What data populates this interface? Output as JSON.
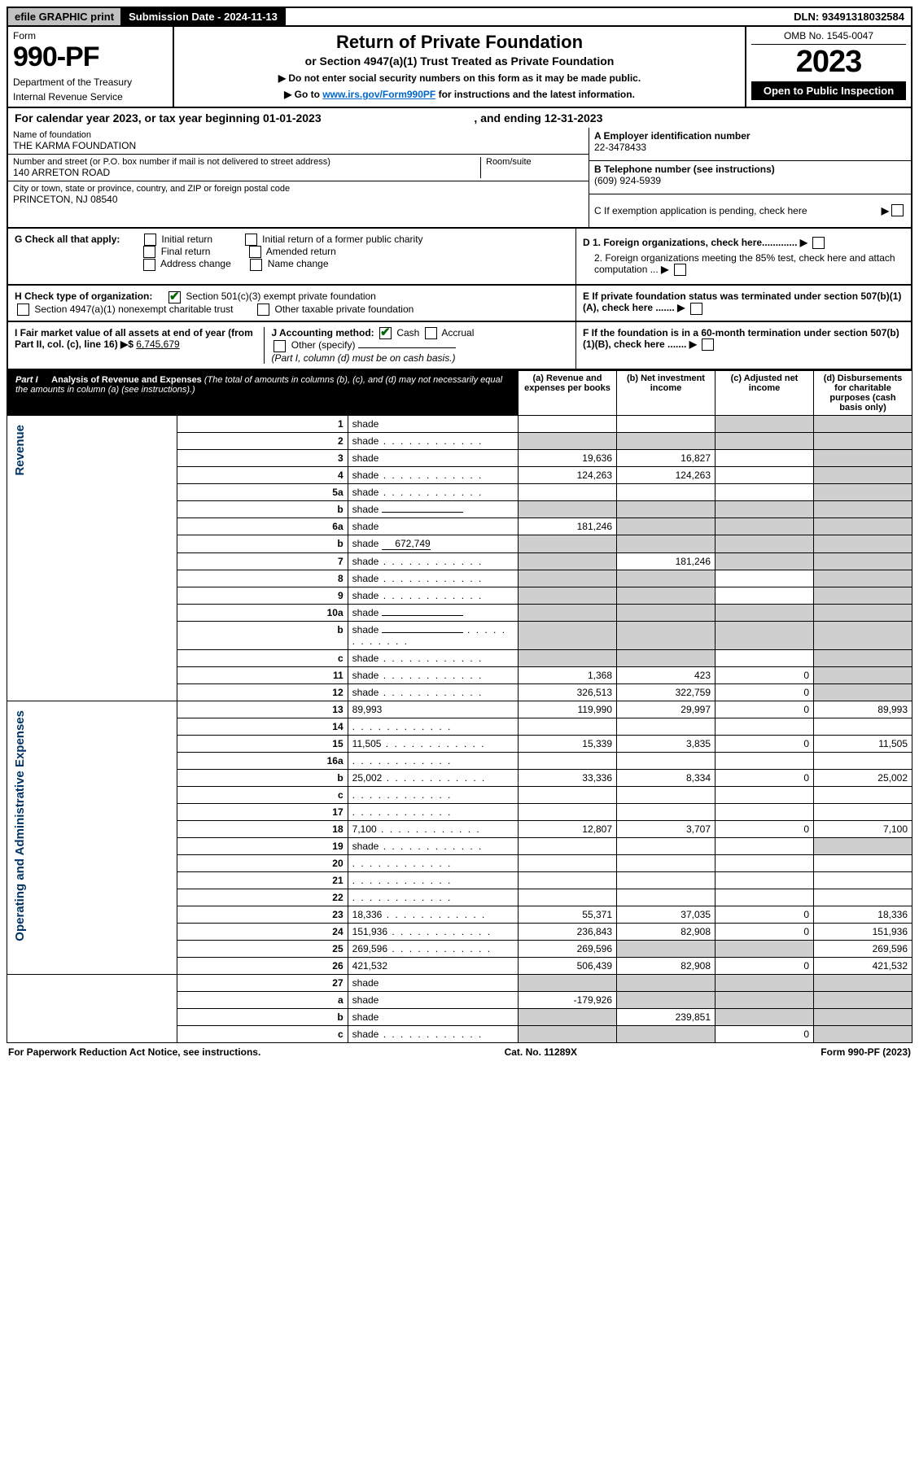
{
  "topbar": {
    "efile": "efile GRAPHIC print",
    "submission": "Submission Date - 2024-11-13",
    "dln": "DLN: 93491318032584"
  },
  "header": {
    "form_label": "Form",
    "form_number": "990-PF",
    "dept1": "Department of the Treasury",
    "dept2": "Internal Revenue Service",
    "title": "Return of Private Foundation",
    "subtitle": "or Section 4947(a)(1) Trust Treated as Private Foundation",
    "instr1": "▶ Do not enter social security numbers on this form as it may be made public.",
    "instr2_pre": "▶ Go to ",
    "instr2_link": "www.irs.gov/Form990PF",
    "instr2_post": " for instructions and the latest information.",
    "omb": "OMB No. 1545-0047",
    "year": "2023",
    "open": "Open to Public Inspection"
  },
  "calyear": {
    "text_pre": "For calendar year 2023, or tax year beginning ",
    "begin": "01-01-2023",
    "text_mid": " , and ending ",
    "end": "12-31-2023"
  },
  "ident": {
    "name_label": "Name of foundation",
    "name": "THE KARMA FOUNDATION",
    "addr_label": "Number and street (or P.O. box number if mail is not delivered to street address)",
    "addr": "140 ARRETON ROAD",
    "room_label": "Room/suite",
    "city_label": "City or town, state or province, country, and ZIP or foreign postal code",
    "city": "PRINCETON, NJ  08540",
    "a_label": "A Employer identification number",
    "a_val": "22-3478433",
    "b_label": "B Telephone number (see instructions)",
    "b_val": "(609) 924-5939",
    "c_label": "C If exemption application is pending, check here"
  },
  "checks": {
    "g": "G Check all that apply:",
    "g_opts": [
      "Initial return",
      "Final return",
      "Address change",
      "Initial return of a former public charity",
      "Amended return",
      "Name change"
    ],
    "h": "H Check type of organization:",
    "h1": "Section 501(c)(3) exempt private foundation",
    "h2": "Section 4947(a)(1) nonexempt charitable trust",
    "h3": "Other taxable private foundation",
    "i_pre": "I Fair market value of all assets at end of year (from Part II, col. (c), line 16) ▶$ ",
    "i_val": "6,745,679",
    "j": "J Accounting method:",
    "j_cash": "Cash",
    "j_accrual": "Accrual",
    "j_other": "Other (specify)",
    "j_note": "(Part I, column (d) must be on cash basis.)",
    "d1": "D 1. Foreign organizations, check here.............",
    "d2": "2. Foreign organizations meeting the 85% test, check here and attach computation ...",
    "e": "E  If private foundation status was terminated under section 507(b)(1)(A), check here .......",
    "f": "F  If the foundation is in a 60-month termination under section 507(b)(1)(B), check here .......",
    "arrow": "▶"
  },
  "part1": {
    "label": "Part I",
    "title": "Analysis of Revenue and Expenses",
    "sub": "(The total of amounts in columns (b), (c), and (d) may not necessarily equal the amounts in column (a) (see instructions).)",
    "col_a": "(a)  Revenue and expenses per books",
    "col_b": "(b)  Net investment income",
    "col_c": "(c)  Adjusted net income",
    "col_d": "(d)  Disbursements for charitable purposes (cash basis only)"
  },
  "side": {
    "revenue": "Revenue",
    "expenses": "Operating and Administrative Expenses"
  },
  "rows": [
    {
      "n": "1",
      "d": "shade",
      "a": "",
      "b": "",
      "c": "shade"
    },
    {
      "n": "2",
      "d": "shade",
      "a": "shade",
      "b": "shade",
      "c": "shade",
      "dots": true
    },
    {
      "n": "3",
      "d": "shade",
      "a": "19,636",
      "b": "16,827",
      "c": ""
    },
    {
      "n": "4",
      "d": "shade",
      "a": "124,263",
      "b": "124,263",
      "c": "",
      "dots": true
    },
    {
      "n": "5a",
      "d": "shade",
      "a": "",
      "b": "",
      "c": "",
      "dots": true
    },
    {
      "n": "b",
      "d": "shade",
      "a": "shade",
      "b": "shade",
      "c": "shade",
      "inline": true
    },
    {
      "n": "6a",
      "d": "shade",
      "a": "181,246",
      "b": "shade",
      "c": "shade"
    },
    {
      "n": "b",
      "d": "shade",
      "a": "shade",
      "b": "shade",
      "c": "shade",
      "inline_val": "672,749"
    },
    {
      "n": "7",
      "d": "shade",
      "a": "shade",
      "b": "181,246",
      "c": "shade",
      "dots": true
    },
    {
      "n": "8",
      "d": "shade",
      "a": "shade",
      "b": "shade",
      "c": "",
      "dots": true
    },
    {
      "n": "9",
      "d": "shade",
      "a": "shade",
      "b": "shade",
      "c": "",
      "dots": true
    },
    {
      "n": "10a",
      "d": "shade",
      "a": "shade",
      "b": "shade",
      "c": "shade",
      "inline": true
    },
    {
      "n": "b",
      "d": "shade",
      "a": "shade",
      "b": "shade",
      "c": "shade",
      "inline": true,
      "dots": true
    },
    {
      "n": "c",
      "d": "shade",
      "a": "shade",
      "b": "shade",
      "c": "",
      "dots": true
    },
    {
      "n": "11",
      "d": "shade",
      "a": "1,368",
      "b": "423",
      "c": "0",
      "dots": true
    },
    {
      "n": "12",
      "d": "shade",
      "a": "326,513",
      "b": "322,759",
      "c": "0",
      "dots": true
    }
  ],
  "exp_rows": [
    {
      "n": "13",
      "d": "89,993",
      "a": "119,990",
      "b": "29,997",
      "c": "0"
    },
    {
      "n": "14",
      "d": "",
      "a": "",
      "b": "",
      "c": "",
      "dots": true
    },
    {
      "n": "15",
      "d": "11,505",
      "a": "15,339",
      "b": "3,835",
      "c": "0",
      "dots": true
    },
    {
      "n": "16a",
      "d": "",
      "a": "",
      "b": "",
      "c": "",
      "dots": true
    },
    {
      "n": "b",
      "d": "25,002",
      "a": "33,336",
      "b": "8,334",
      "c": "0",
      "dots": true
    },
    {
      "n": "c",
      "d": "",
      "a": "",
      "b": "",
      "c": "",
      "dots": true
    },
    {
      "n": "17",
      "d": "",
      "a": "",
      "b": "",
      "c": "",
      "dots": true
    },
    {
      "n": "18",
      "d": "7,100",
      "a": "12,807",
      "b": "3,707",
      "c": "0",
      "dots": true
    },
    {
      "n": "19",
      "d": "shade",
      "a": "",
      "b": "",
      "c": "",
      "dots": true
    },
    {
      "n": "20",
      "d": "",
      "a": "",
      "b": "",
      "c": "",
      "dots": true
    },
    {
      "n": "21",
      "d": "",
      "a": "",
      "b": "",
      "c": "",
      "dots": true
    },
    {
      "n": "22",
      "d": "",
      "a": "",
      "b": "",
      "c": "",
      "dots": true
    },
    {
      "n": "23",
      "d": "18,336",
      "a": "55,371",
      "b": "37,035",
      "c": "0",
      "dots": true
    },
    {
      "n": "24",
      "d": "151,936",
      "a": "236,843",
      "b": "82,908",
      "c": "0",
      "dots": true
    },
    {
      "n": "25",
      "d": "269,596",
      "a": "269,596",
      "b": "shade",
      "c": "shade",
      "dots": true
    },
    {
      "n": "26",
      "d": "421,532",
      "a": "506,439",
      "b": "82,908",
      "c": "0"
    }
  ],
  "bottom_rows": [
    {
      "n": "27",
      "d": "shade",
      "a": "shade",
      "b": "shade",
      "c": "shade"
    },
    {
      "n": "a",
      "d": "shade",
      "a": "-179,926",
      "b": "shade",
      "c": "shade"
    },
    {
      "n": "b",
      "d": "shade",
      "a": "shade",
      "b": "239,851",
      "c": "shade"
    },
    {
      "n": "c",
      "d": "shade",
      "a": "shade",
      "b": "shade",
      "c": "0",
      "dots": true
    }
  ],
  "footer": {
    "left": "For Paperwork Reduction Act Notice, see instructions.",
    "mid": "Cat. No. 11289X",
    "right": "Form 990-PF (2023)"
  }
}
